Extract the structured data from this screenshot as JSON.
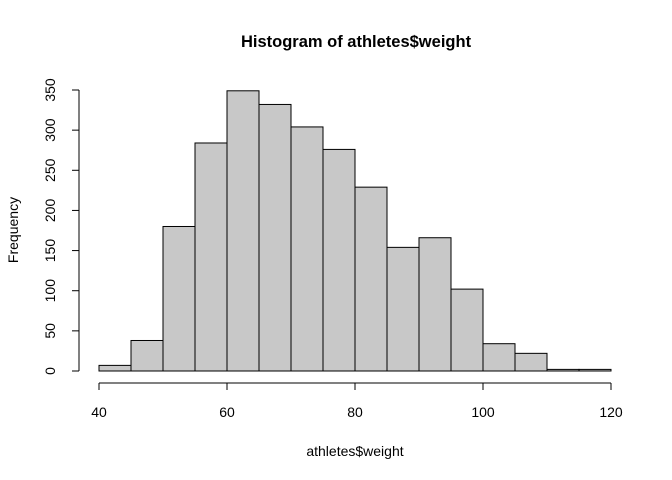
{
  "chart_data": {
    "type": "bar",
    "title": "Histogram of athletes$weight",
    "xlabel": "athletes$weight",
    "ylabel": "Frequency",
    "bin_width": 5,
    "bins": [
      {
        "start": 40,
        "end": 45,
        "count": 7
      },
      {
        "start": 45,
        "end": 50,
        "count": 38
      },
      {
        "start": 50,
        "end": 55,
        "count": 180
      },
      {
        "start": 55,
        "end": 60,
        "count": 284
      },
      {
        "start": 60,
        "end": 65,
        "count": 349
      },
      {
        "start": 65,
        "end": 70,
        "count": 332
      },
      {
        "start": 70,
        "end": 75,
        "count": 304
      },
      {
        "start": 75,
        "end": 80,
        "count": 276
      },
      {
        "start": 80,
        "end": 85,
        "count": 229
      },
      {
        "start": 85,
        "end": 90,
        "count": 154
      },
      {
        "start": 90,
        "end": 95,
        "count": 166
      },
      {
        "start": 95,
        "end": 100,
        "count": 102
      },
      {
        "start": 100,
        "end": 105,
        "count": 34
      },
      {
        "start": 105,
        "end": 110,
        "count": 22
      },
      {
        "start": 110,
        "end": 115,
        "count": 2
      },
      {
        "start": 115,
        "end": 120,
        "count": 2
      }
    ],
    "xlim": [
      40,
      120
    ],
    "ylim": [
      0,
      350
    ],
    "x_ticks": [
      40,
      60,
      80,
      100,
      120
    ],
    "y_ticks": [
      0,
      50,
      100,
      150,
      200,
      250,
      300,
      350
    ],
    "bar_color": "#c8c8c8",
    "border_color": "#000000",
    "grid": false,
    "legend": "none"
  }
}
